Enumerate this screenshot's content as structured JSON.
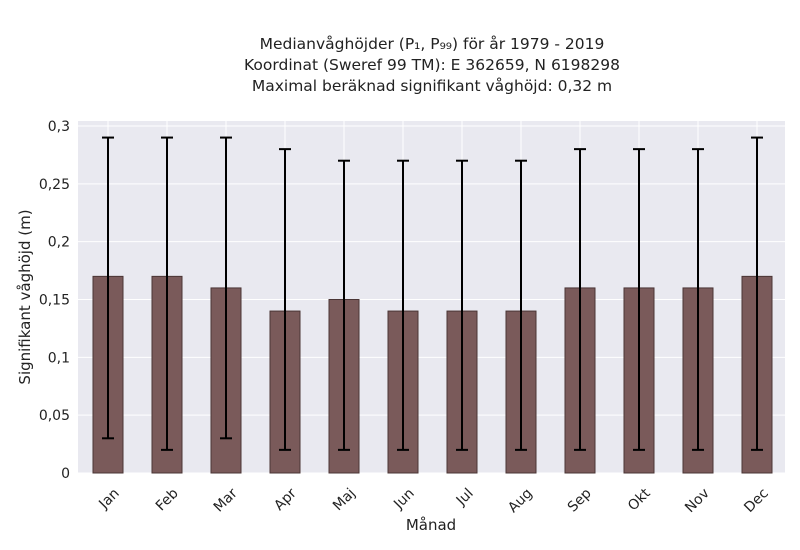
{
  "title": {
    "line1": "Medianvåghöjder (P₁, P₉₉) för år 1979 - 2019",
    "line2": "Koordinat (Sweref 99 TM): E 362659, N 6198298",
    "line3": "Maximal beräknad signifikant våghöjd: 0,32 m"
  },
  "chart_data": {
    "type": "bar",
    "title": "Medianvåghöjder (P₁, P₉₉) för år 1979 - 2019",
    "subtitle": "Koordinat (Sweref 99 TM): E 362659, N 6198298 / Maximal beräknad signifikant våghöjd: 0,32 m",
    "xlabel": "Månad",
    "ylabel": "Signifikant våghöjd (m)",
    "categories": [
      "Jan",
      "Feb",
      "Mar",
      "Apr",
      "Maj",
      "Jun",
      "Jul",
      "Aug",
      "Sep",
      "Okt",
      "Nov",
      "Dec"
    ],
    "values": [
      0.17,
      0.17,
      0.16,
      0.14,
      0.15,
      0.14,
      0.14,
      0.14,
      0.16,
      0.16,
      0.16,
      0.17
    ],
    "error_low": [
      0.03,
      0.02,
      0.03,
      0.02,
      0.02,
      0.02,
      0.02,
      0.02,
      0.02,
      0.02,
      0.02,
      0.02
    ],
    "error_high": [
      0.29,
      0.29,
      0.29,
      0.28,
      0.27,
      0.27,
      0.27,
      0.27,
      0.28,
      0.28,
      0.28,
      0.29
    ],
    "ylim": [
      0,
      0.3
    ],
    "yticks": [
      0,
      0.05,
      0.1,
      0.15,
      0.2,
      0.25,
      0.3
    ],
    "ytick_labels": [
      "0",
      "0,05",
      "0,1",
      "0,15",
      "0,2",
      "0,25",
      "0,3"
    ],
    "grid": true,
    "colors": {
      "bar": "#7a5a5a",
      "bar_edge": "#4a3535",
      "error": "#000000",
      "plot_bg": "#e9e9f0",
      "grid": "#ffffff"
    }
  }
}
